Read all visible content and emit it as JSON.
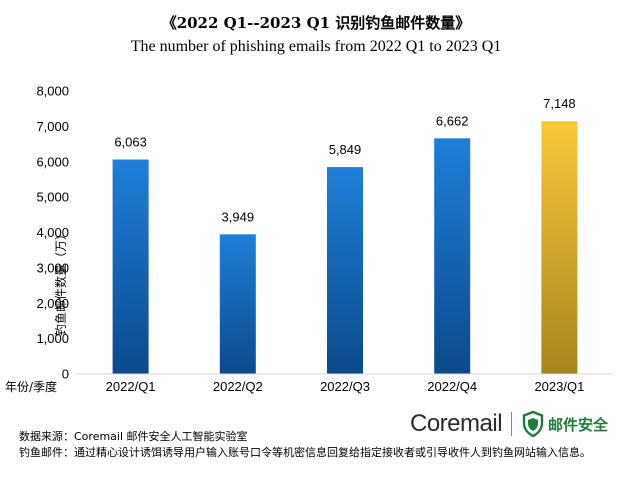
{
  "chart_data": {
    "type": "bar",
    "title": "《2022 Q1--2023 Q1 识别钓鱼邮件数量》",
    "subtitle": "The number of phishing emails  from 2022 Q1 to 2023 Q1",
    "categories": [
      "2022/Q1",
      "2022/Q2",
      "2022/Q3",
      "2022/Q4",
      "2023/Q1"
    ],
    "values": [
      6063,
      3949,
      5849,
      6662,
      7148
    ],
    "value_labels": [
      "6,063",
      "3,949",
      "5,849",
      "6,662",
      "7,148"
    ],
    "xlabel": "年份/季度",
    "ylabel": "钓鱼邮件数量（万）",
    "ylim": [
      0,
      8000
    ],
    "yticks": [
      0,
      1000,
      2000,
      3000,
      4000,
      5000,
      6000,
      7000,
      8000
    ],
    "ytick_labels": [
      "0",
      "1,000",
      "2,000",
      "3,000",
      "4,000",
      "5,000",
      "6,000",
      "7,000",
      "8,000"
    ],
    "grid": false,
    "colors": {
      "bar": "#1a73c8",
      "bar_dark": "#0b4a8c",
      "highlight": "#f5c533",
      "highlight_dark": "#b8901c"
    }
  },
  "footer": {
    "source": "数据来源：Coremail 邮件安全人工智能实验室",
    "definition": "钓鱼邮件：通过精心设计诱饵诱导用户输入账号口令等机密信息回复给指定接收者或引导收件人到钓鱼网站输入信息。"
  },
  "brand": {
    "name": "Coremail",
    "sub": "邮件安全",
    "color": "#1e7d3a"
  }
}
